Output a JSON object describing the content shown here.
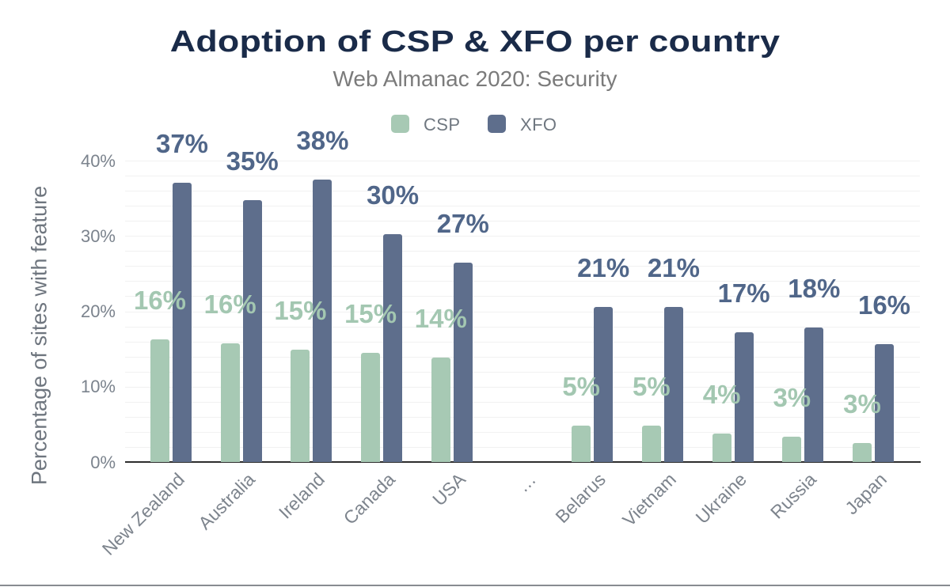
{
  "chart_data": {
    "type": "bar",
    "title": "Adoption of CSP & XFO per country",
    "subtitle": "Web Almanac 2020: Security",
    "ylabel": "Percentage of sites with feature",
    "ylim": [
      0,
      40
    ],
    "ytick_step": 10,
    "ytick_suffix": "%",
    "minor_grid_step": 2,
    "grid": "on",
    "legend_position": "top",
    "categories": [
      "New Zealand",
      "Australia",
      "Ireland",
      "Canada",
      "USA",
      "…",
      "Belarus",
      "Vietnam",
      "Ukraine",
      "Russia",
      "Japan"
    ],
    "series": [
      {
        "name": "CSP",
        "color": "#a7c9b4",
        "label_color": "#a3c7b1",
        "values": [
          16.3,
          15.8,
          14.9,
          14.5,
          13.9,
          null,
          4.8,
          4.8,
          3.8,
          3.4,
          2.5
        ],
        "labels": [
          "16%",
          "16%",
          "15%",
          "15%",
          "14%",
          "",
          "5%",
          "5%",
          "4%",
          "3%",
          "3%"
        ]
      },
      {
        "name": "XFO",
        "color": "#5e6e8c",
        "label_color": "#506689",
        "values": [
          37.1,
          34.8,
          37.5,
          30.2,
          26.5,
          null,
          20.6,
          20.6,
          17.2,
          17.8,
          15.6
        ],
        "labels": [
          "37%",
          "35%",
          "38%",
          "30%",
          "27%",
          "",
          "21%",
          "21%",
          "17%",
          "18%",
          "16%"
        ]
      }
    ],
    "yticks": [
      "0%",
      "10%",
      "20%",
      "30%",
      "40%"
    ]
  }
}
